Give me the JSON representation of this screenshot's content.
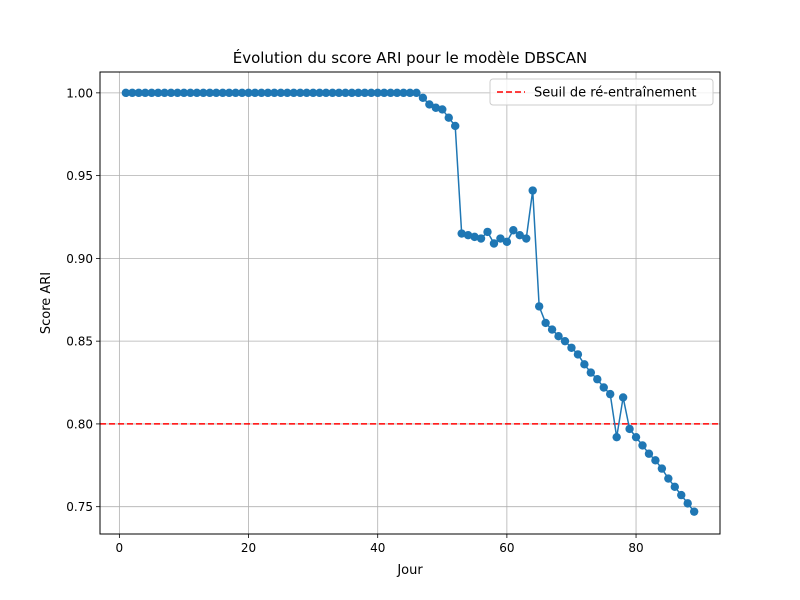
{
  "chart_data": {
    "type": "line",
    "title": "Évolution du score ARI pour le modèle DBSCAN",
    "xlabel": "Jour",
    "ylabel": "Score ARI",
    "xlim": [
      -3,
      93
    ],
    "ylim": [
      0.7335,
      1.0126
    ],
    "xticks": [
      0,
      20,
      40,
      60,
      80
    ],
    "yticks": [
      0.75,
      0.8,
      0.85,
      0.9,
      0.95,
      1.0
    ],
    "ytick_labels": [
      "0.75",
      "0.80",
      "0.85",
      "0.90",
      "0.95",
      "1.00"
    ],
    "grid": true,
    "legend_position": "top-right",
    "series": [
      {
        "color": "#1f77b4",
        "marker": "circle",
        "x": [
          1,
          2,
          3,
          4,
          5,
          6,
          7,
          8,
          9,
          10,
          11,
          12,
          13,
          14,
          15,
          16,
          17,
          18,
          19,
          20,
          21,
          22,
          23,
          24,
          25,
          26,
          27,
          28,
          29,
          30,
          31,
          32,
          33,
          34,
          35,
          36,
          37,
          38,
          39,
          40,
          41,
          42,
          43,
          44,
          45,
          46,
          47,
          48,
          49,
          50,
          51,
          52,
          53,
          54,
          55,
          56,
          57,
          58,
          59,
          60,
          61,
          62,
          63,
          64,
          65,
          66,
          67,
          68,
          69,
          70,
          71,
          72,
          73,
          74,
          75,
          76,
          77,
          78,
          79,
          80,
          81,
          82,
          83,
          84,
          85,
          86,
          87,
          88,
          89
        ],
        "y": [
          1,
          1,
          1,
          1,
          1,
          1,
          1,
          1,
          1,
          1,
          1,
          1,
          1,
          1,
          1,
          1,
          1,
          1,
          1,
          1,
          1,
          1,
          1,
          1,
          1,
          1,
          1,
          1,
          1,
          1,
          1,
          1,
          1,
          1,
          1,
          1,
          1,
          1,
          1,
          1,
          1,
          1,
          1,
          1,
          1,
          1,
          0.997,
          0.993,
          0.991,
          0.99,
          0.985,
          0.98,
          0.915,
          0.914,
          0.913,
          0.912,
          0.916,
          0.909,
          0.912,
          0.91,
          0.917,
          0.914,
          0.912,
          0.941,
          0.871,
          0.861,
          0.857,
          0.853,
          0.85,
          0.846,
          0.842,
          0.836,
          0.831,
          0.827,
          0.822,
          0.818,
          0.792,
          0.816,
          0.797,
          0.792,
          0.787,
          0.782,
          0.778,
          0.773,
          0.767,
          0.762,
          0.757,
          0.752,
          0.747
        ]
      }
    ],
    "threshold": {
      "value": 0.8,
      "label": "Seuil de ré-entraînement",
      "color": "#ff0000",
      "style": "dashed"
    }
  }
}
